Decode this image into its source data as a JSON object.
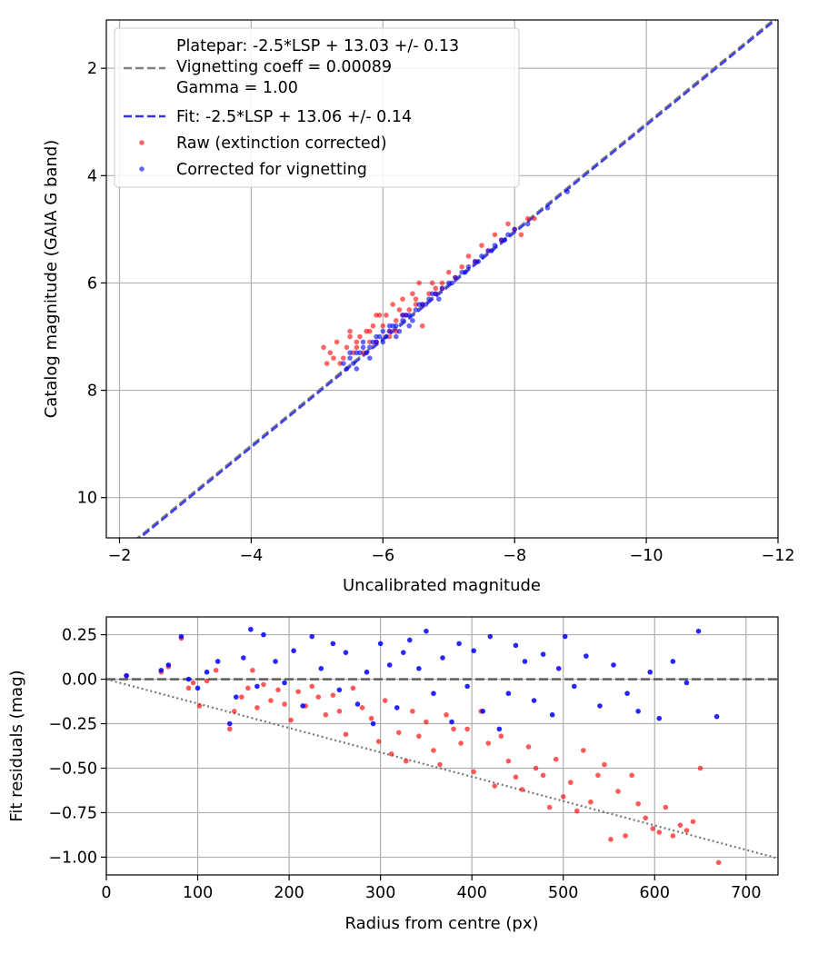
{
  "chart_data": [
    {
      "type": "scatter",
      "xlabel": "Uncalibrated magnitude",
      "ylabel": "Catalog magnitude (GAIA G band)",
      "xlim": [
        -1.8,
        -12.0
      ],
      "ylim": [
        10.75,
        1.1
      ],
      "x_inverted": true,
      "y_inverted": true,
      "xticks": [
        -2,
        -4,
        -6,
        -8,
        -10,
        -12
      ],
      "xtick_labels": [
        "−2",
        "−4",
        "−6",
        "−8",
        "−10",
        "−12"
      ],
      "yticks": [
        2,
        4,
        6,
        8,
        10
      ],
      "ytick_labels": [
        "2",
        "4",
        "6",
        "8",
        "10"
      ],
      "grid": true,
      "legend_position": "upper-left",
      "lines": [
        {
          "name": "Platepar: -2.5*LSP + 13.03 +/- 0.13",
          "extra_lines": [
            "Vignetting coeff = 0.00089",
            "Gamma = 1.00"
          ],
          "slope": 1.0,
          "intercept": 13.03,
          "style": "dashed",
          "color": "#808080"
        },
        {
          "name": "Fit: -2.5*LSP + 13.06 +/- 0.14",
          "slope": 1.0,
          "intercept": 13.06,
          "style": "dashed",
          "color": "#3333ee"
        }
      ],
      "series": [
        {
          "name": "Raw (extinction corrected)",
          "color": "#ff0000",
          "x": [
            -5.1,
            -5.2,
            -5.3,
            -5.4,
            -5.5,
            -5.6,
            -5.7,
            -5.8,
            -5.9,
            -6.0,
            -6.1,
            -6.2,
            -6.3,
            -6.4,
            -6.5,
            -6.6,
            -6.7,
            -6.8,
            -6.9,
            -7.0,
            -7.2,
            -7.4,
            -7.6,
            -7.8,
            -8.0,
            -8.1,
            -8.3,
            -5.25,
            -5.45,
            -5.65,
            -5.85,
            -6.05,
            -6.25,
            -6.45,
            -6.55,
            -6.15,
            -5.95,
            -5.75,
            -5.55,
            -5.35,
            -6.35,
            -6.75,
            -7.1,
            -7.3,
            -7.5,
            -7.7,
            -7.9,
            -8.2,
            -5.15,
            -5.5,
            -5.8,
            -6.1,
            -6.3,
            -6.6,
            -6.9,
            -5.6,
            -5.9,
            -6.2,
            -6.5,
            -6.8
          ],
          "y": [
            7.2,
            7.3,
            7.1,
            7.4,
            7.0,
            7.2,
            7.3,
            6.9,
            7.1,
            6.8,
            6.9,
            6.7,
            6.6,
            6.5,
            6.3,
            6.4,
            6.2,
            6.1,
            6.0,
            5.8,
            5.7,
            5.6,
            5.4,
            5.2,
            5.0,
            5.1,
            4.8,
            7.4,
            7.2,
            7.0,
            6.8,
            6.6,
            6.5,
            6.2,
            6.0,
            6.4,
            6.6,
            6.9,
            7.3,
            7.5,
            6.6,
            6.0,
            5.9,
            5.5,
            5.3,
            5.1,
            4.9,
            4.8,
            7.5,
            6.9,
            7.1,
            7.0,
            6.3,
            6.8,
            6.1,
            7.1,
            6.6,
            6.9,
            6.4,
            6.2
          ]
        },
        {
          "name": "Corrected for vignetting",
          "color": "#0000ff",
          "x": [
            -5.4,
            -5.5,
            -5.6,
            -5.7,
            -5.8,
            -5.9,
            -6.0,
            -6.1,
            -6.2,
            -6.3,
            -6.4,
            -6.5,
            -6.6,
            -6.7,
            -6.8,
            -6.9,
            -7.0,
            -7.1,
            -7.2,
            -7.3,
            -7.4,
            -7.5,
            -7.6,
            -7.7,
            -7.8,
            -7.9,
            -8.0,
            -8.2,
            -8.5,
            -8.8,
            -5.45,
            -5.55,
            -5.65,
            -5.75,
            -5.85,
            -5.95,
            -6.05,
            -6.15,
            -6.25,
            -6.35,
            -6.45,
            -6.55,
            -6.65,
            -6.75,
            -6.85,
            -5.6,
            -5.8,
            -6.0,
            -6.2,
            -6.4,
            -7.05,
            -7.25,
            -7.45,
            -7.65,
            -7.85,
            -5.5,
            -5.7,
            -5.9,
            -6.1,
            -6.3
          ],
          "y": [
            7.5,
            7.4,
            7.3,
            7.2,
            7.2,
            7.0,
            6.9,
            6.9,
            6.8,
            6.7,
            6.6,
            6.5,
            6.4,
            6.3,
            6.2,
            6.1,
            6.0,
            5.9,
            5.8,
            5.7,
            5.6,
            5.5,
            5.4,
            5.3,
            5.2,
            5.1,
            5.0,
            4.9,
            4.6,
            4.3,
            7.6,
            7.5,
            7.3,
            7.3,
            7.1,
            7.0,
            7.0,
            6.8,
            6.9,
            6.6,
            6.7,
            6.4,
            6.4,
            6.2,
            6.3,
            7.6,
            7.4,
            7.1,
            7.0,
            6.8,
            6.0,
            5.8,
            5.6,
            5.4,
            5.2,
            7.3,
            7.1,
            7.1,
            6.8,
            6.6
          ]
        }
      ]
    },
    {
      "type": "scatter",
      "xlabel": "Radius from centre (px)",
      "ylabel": "Fit residuals (mag)",
      "xlim": [
        0,
        735
      ],
      "ylim": [
        -1.1,
        0.35
      ],
      "xticks": [
        0,
        100,
        200,
        300,
        400,
        500,
        600,
        700
      ],
      "xtick_labels": [
        "0",
        "100",
        "200",
        "300",
        "400",
        "500",
        "600",
        "700"
      ],
      "yticks": [
        0.25,
        0.0,
        -0.25,
        -0.5,
        -0.75,
        -1.0
      ],
      "ytick_labels": [
        "0.25",
        "0.00",
        "−0.25",
        "−0.50",
        "−0.75",
        "−1.00"
      ],
      "grid": true,
      "reference_lines": [
        {
          "type": "horizontal",
          "y": 0.0,
          "style": "dashed",
          "color": "#555555"
        },
        {
          "type": "linear",
          "slope": -0.00137,
          "intercept": 0.0,
          "style": "dotted",
          "color": "#777777"
        }
      ],
      "series": [
        {
          "name": "Raw",
          "color": "#ff0000",
          "x": [
            22,
            60,
            68,
            82,
            90,
            95,
            102,
            110,
            120,
            135,
            140,
            148,
            155,
            160,
            165,
            172,
            180,
            188,
            195,
            202,
            210,
            218,
            225,
            232,
            240,
            248,
            255,
            262,
            270,
            280,
            290,
            298,
            305,
            312,
            320,
            328,
            335,
            342,
            350,
            358,
            365,
            372,
            380,
            388,
            395,
            402,
            410,
            418,
            425,
            432,
            440,
            448,
            455,
            462,
            470,
            478,
            485,
            492,
            500,
            508,
            515,
            522,
            530,
            538,
            545,
            552,
            560,
            568,
            575,
            582,
            590,
            598,
            605,
            612,
            620,
            628,
            635,
            642,
            650,
            670
          ],
          "y": [
            0.02,
            0.04,
            0.07,
            0.23,
            -0.05,
            -0.02,
            -0.15,
            -0.01,
            0.05,
            -0.28,
            -0.18,
            -0.1,
            -0.05,
            0.05,
            -0.16,
            -0.03,
            -0.12,
            -0.06,
            -0.14,
            -0.23,
            -0.07,
            -0.15,
            -0.04,
            -0.1,
            -0.2,
            -0.09,
            -0.18,
            -0.31,
            -0.05,
            -0.16,
            -0.22,
            -0.35,
            -0.12,
            -0.42,
            -0.3,
            -0.46,
            -0.18,
            -0.32,
            -0.24,
            -0.4,
            -0.48,
            -0.2,
            -0.28,
            -0.36,
            -0.28,
            -0.52,
            -0.18,
            -0.36,
            -0.6,
            -0.32,
            -0.46,
            -0.55,
            -0.62,
            -0.38,
            -0.5,
            -0.54,
            -0.72,
            -0.45,
            -0.66,
            -0.58,
            -0.74,
            -0.4,
            -0.69,
            -0.54,
            -0.48,
            -0.9,
            -0.63,
            -0.88,
            -0.54,
            -0.7,
            -0.78,
            -0.84,
            -0.86,
            -0.72,
            -0.88,
            -0.82,
            -0.85,
            -0.8,
            -0.5,
            -1.03
          ]
        },
        {
          "name": "Corrected",
          "color": "#0000ff",
          "x": [
            22,
            60,
            68,
            82,
            90,
            100,
            110,
            122,
            135,
            142,
            150,
            158,
            165,
            172,
            185,
            195,
            205,
            215,
            225,
            235,
            248,
            255,
            262,
            275,
            285,
            292,
            300,
            310,
            318,
            325,
            332,
            342,
            350,
            358,
            368,
            378,
            386,
            395,
            402,
            412,
            420,
            430,
            440,
            448,
            458,
            468,
            478,
            488,
            495,
            502,
            512,
            525,
            540,
            555,
            570,
            582,
            595,
            605,
            620,
            635,
            648,
            668
          ],
          "y": [
            0.02,
            0.05,
            0.08,
            0.24,
            0.0,
            -0.05,
            0.04,
            0.1,
            -0.25,
            -0.1,
            0.12,
            0.28,
            -0.04,
            0.25,
            0.1,
            -0.02,
            0.16,
            -0.15,
            0.24,
            0.06,
            0.2,
            -0.06,
            0.15,
            -0.14,
            0.04,
            -0.25,
            0.2,
            0.08,
            -0.16,
            0.15,
            0.22,
            0.06,
            0.27,
            -0.08,
            0.12,
            -0.24,
            0.2,
            -0.04,
            0.16,
            -0.18,
            0.24,
            -0.28,
            -0.08,
            0.19,
            0.1,
            -0.12,
            0.14,
            -0.2,
            0.06,
            0.24,
            -0.04,
            0.13,
            -0.15,
            0.08,
            -0.08,
            -0.18,
            0.04,
            -0.22,
            0.1,
            -0.02,
            0.27,
            -0.21
          ]
        }
      ]
    }
  ]
}
